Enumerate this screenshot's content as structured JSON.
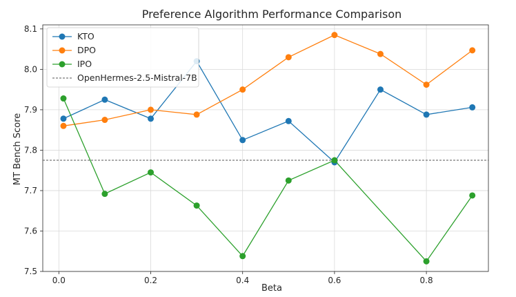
{
  "chart_data": {
    "type": "line",
    "title": "Preference Algorithm Performance Comparison",
    "xlabel": "Beta",
    "ylabel": "MT Bench Score",
    "xlim": [
      -0.035,
      0.935
    ],
    "ylim": [
      7.5,
      8.11
    ],
    "xticks": [
      0.0,
      0.2,
      0.4,
      0.6,
      0.8
    ],
    "xtick_labels": [
      "0.0",
      "0.2",
      "0.4",
      "0.6",
      "0.8"
    ],
    "yticks": [
      7.5,
      7.6,
      7.7,
      7.8,
      7.9,
      8.0,
      8.1
    ],
    "ytick_labels": [
      "7.5",
      "7.6",
      "7.7",
      "7.8",
      "7.9",
      "8.0",
      "8.1"
    ],
    "grid": true,
    "legend_position": "top-left",
    "x": [
      0.01,
      0.1,
      0.2,
      0.3,
      0.4,
      0.5,
      0.6,
      0.7,
      0.8,
      0.9
    ],
    "series": [
      {
        "name": "KTO",
        "color": "#1f77b4",
        "values": [
          7.878,
          7.925,
          7.878,
          8.02,
          7.825,
          7.872,
          7.77,
          7.95,
          7.888,
          7.906
        ]
      },
      {
        "name": "DPO",
        "color": "#ff7f0e",
        "values": [
          7.86,
          7.875,
          7.9,
          7.888,
          7.95,
          8.03,
          8.085,
          8.038,
          7.962,
          8.047
        ]
      },
      {
        "name": "IPO",
        "color": "#2ca02c",
        "values": [
          7.928,
          7.692,
          7.745,
          7.663,
          7.538,
          7.725,
          7.775,
          null,
          7.525,
          7.688
        ]
      }
    ],
    "reference_line": {
      "name": "OpenHermes-2.5-Mistral-7B",
      "y": 7.775,
      "color": "#555555"
    }
  }
}
